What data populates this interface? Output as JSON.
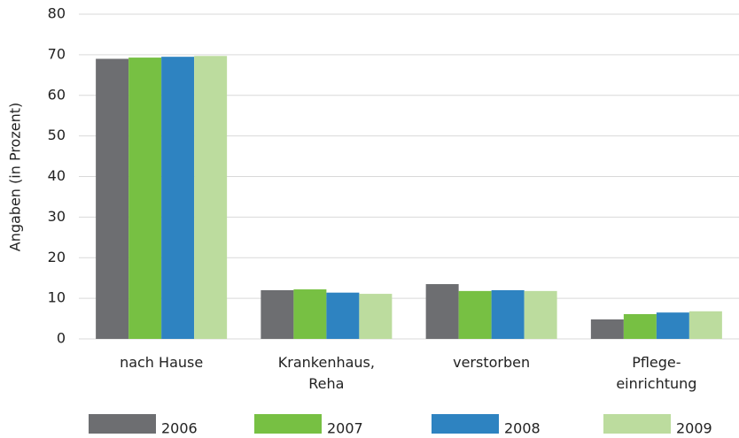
{
  "chart_data": {
    "type": "bar",
    "y_label": "Angaben (in Prozent)",
    "categories": [
      "nach Hause",
      "Krankenhaus,\nReha",
      "verstorben",
      "Pflege-\neinrichtung"
    ],
    "series": [
      {
        "name": "2006",
        "color": "#6d6e71",
        "values": [
          69,
          12,
          13.5,
          4.8
        ]
      },
      {
        "name": "2007",
        "color": "#77c043",
        "values": [
          69.3,
          12.2,
          11.8,
          6.1
        ]
      },
      {
        "name": "2008",
        "color": "#2e83c1",
        "values": [
          69.5,
          11.4,
          12,
          6.5
        ]
      },
      {
        "name": "2009",
        "color": "#bcdc9e",
        "values": [
          69.7,
          11.1,
          11.8,
          6.8
        ]
      }
    ],
    "ylim": [
      0,
      80
    ],
    "yticks": [
      0,
      10,
      20,
      30,
      40,
      50,
      60,
      70,
      80
    ],
    "grid": true,
    "legend": "bottom"
  }
}
